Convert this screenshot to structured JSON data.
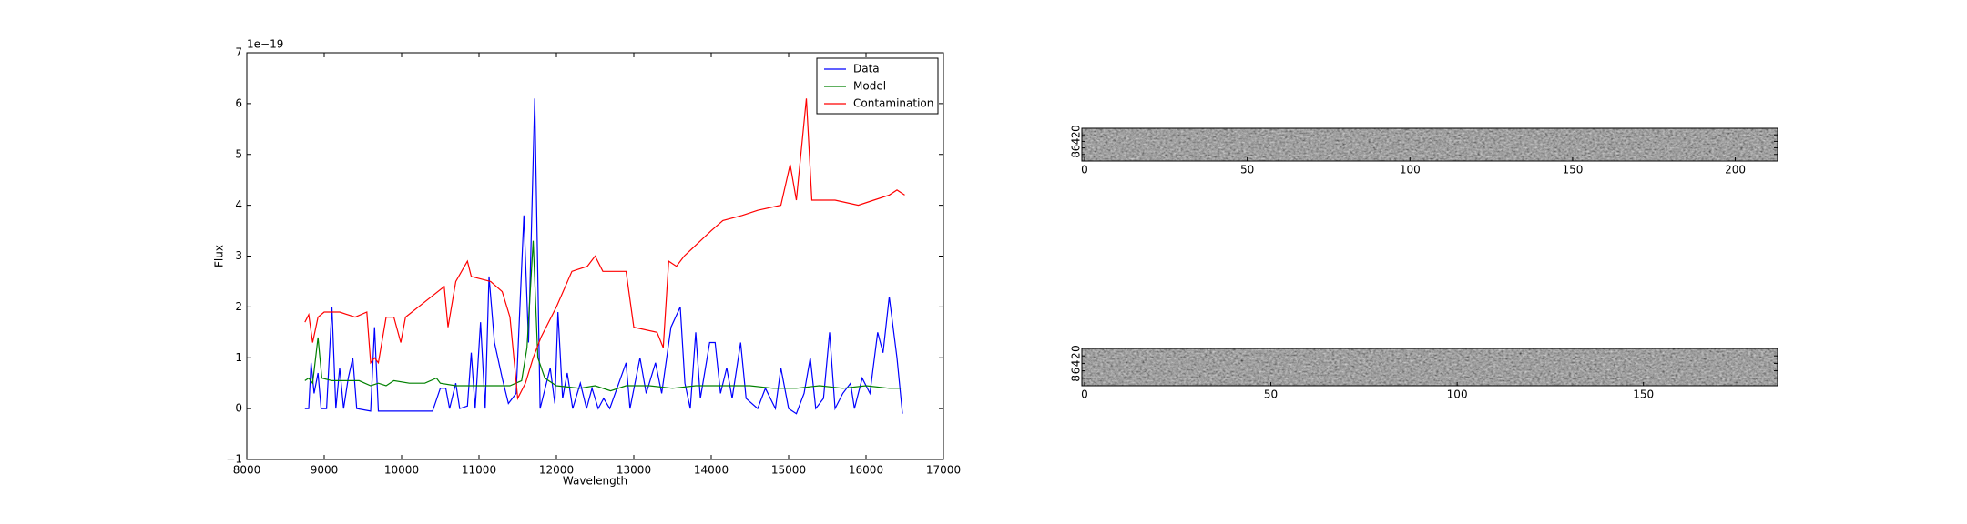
{
  "chart_data": [
    {
      "type": "line",
      "xlabel": "Wavelength",
      "ylabel": "Flux",
      "y_offset_label": "1e−19",
      "xlim": [
        8000,
        17000
      ],
      "xticks": [
        8000,
        9000,
        10000,
        11000,
        12000,
        13000,
        14000,
        15000,
        16000,
        17000
      ],
      "ylim": [
        -1,
        7
      ],
      "yticks": [
        {
          "value": -1,
          "label": "−1"
        },
        0,
        1,
        2,
        3,
        4,
        5,
        6,
        7
      ],
      "legend": "upper right",
      "series": [
        {
          "name": "Data",
          "color": "#0000ff",
          "x": [
            8750,
            8800,
            8830,
            8870,
            8920,
            8960,
            9030,
            9100,
            9150,
            9200,
            9250,
            9310,
            9370,
            9420,
            9600,
            9650,
            9700,
            10000,
            10400,
            10500,
            10570,
            10620,
            10700,
            10750,
            10850,
            10900,
            10950,
            11020,
            11080,
            11130,
            11200,
            11300,
            11380,
            11480,
            11580,
            11640,
            11720,
            11790,
            11920,
            11980,
            12020,
            12080,
            12140,
            12210,
            12310,
            12390,
            12460,
            12540,
            12610,
            12690,
            12900,
            12950,
            13080,
            13160,
            13280,
            13360,
            13480,
            13600,
            13660,
            13730,
            13800,
            13860,
            13980,
            14050,
            14120,
            14200,
            14270,
            14380,
            14450,
            14600,
            14700,
            14830,
            14900,
            15000,
            15100,
            15200,
            15280,
            15350,
            15450,
            15530,
            15600,
            15700,
            15800,
            15850,
            15950,
            16050,
            16150,
            16220,
            16300,
            16400,
            16470
          ],
          "values": [
            0,
            0,
            0.9,
            0.3,
            0.7,
            0,
            0,
            2.0,
            0,
            0.8,
            0,
            0.6,
            1.0,
            0,
            -0.05,
            1.6,
            -0.05,
            -0.05,
            -0.05,
            0.4,
            0.4,
            0,
            0.5,
            0,
            0.05,
            1.1,
            0,
            1.7,
            0,
            2.6,
            1.3,
            0.6,
            0.1,
            0.3,
            3.8,
            1.3,
            6.1,
            0,
            0.8,
            0.1,
            1.9,
            0.2,
            0.7,
            0,
            0.5,
            0,
            0.4,
            0,
            0.2,
            0,
            0.9,
            0,
            1.0,
            0.3,
            0.9,
            0.3,
            1.6,
            2.0,
            0.5,
            0,
            1.5,
            0.2,
            1.3,
            1.3,
            0.3,
            0.8,
            0.2,
            1.3,
            0.2,
            0,
            0.4,
            0,
            0.8,
            0,
            -0.1,
            0.3,
            1.0,
            0,
            0.2,
            1.5,
            0,
            0.3,
            0.5,
            0,
            0.6,
            0.3,
            1.5,
            1.1,
            2.2,
            1.0,
            -0.1
          ]
        },
        {
          "name": "Model",
          "color": "#008000",
          "x": [
            8750,
            8800,
            8850,
            8920,
            8970,
            9100,
            9300,
            9450,
            9600,
            9700,
            9800,
            9900,
            10100,
            10300,
            10450,
            10500,
            10700,
            10900,
            11200,
            11400,
            11550,
            11620,
            11700,
            11760,
            11850,
            12000,
            12300,
            12500,
            12700,
            12900,
            13200,
            13500,
            13800,
            14200,
            14500,
            14800,
            15100,
            15400,
            15700,
            16000,
            16300,
            16450
          ],
          "values": [
            0.55,
            0.6,
            0.5,
            1.4,
            0.6,
            0.55,
            0.55,
            0.55,
            0.45,
            0.5,
            0.45,
            0.55,
            0.5,
            0.5,
            0.6,
            0.5,
            0.45,
            0.45,
            0.45,
            0.45,
            0.55,
            1.2,
            3.3,
            1.0,
            0.6,
            0.45,
            0.4,
            0.45,
            0.35,
            0.45,
            0.45,
            0.4,
            0.45,
            0.45,
            0.45,
            0.4,
            0.4,
            0.45,
            0.4,
            0.45,
            0.4,
            0.4
          ]
        },
        {
          "name": "Contamination",
          "color": "#ff0000",
          "x": [
            8750,
            8800,
            8850,
            8920,
            9000,
            9200,
            9400,
            9550,
            9600,
            9650,
            9700,
            9800,
            9900,
            9990,
            10050,
            10300,
            10550,
            10600,
            10700,
            10850,
            10900,
            11150,
            11300,
            11400,
            11450,
            11500,
            11600,
            11700,
            11800,
            12000,
            12200,
            12400,
            12500,
            12600,
            12900,
            13000,
            13300,
            13380,
            13450,
            13550,
            13650,
            14000,
            14150,
            14400,
            14600,
            14900,
            15020,
            15100,
            15230,
            15300,
            15600,
            15900,
            16100,
            16300,
            16400,
            16500
          ],
          "values": [
            1.7,
            1.85,
            1.3,
            1.8,
            1.9,
            1.9,
            1.8,
            1.9,
            0.9,
            1.0,
            0.9,
            1.8,
            1.8,
            1.3,
            1.8,
            2.1,
            2.4,
            1.6,
            2.5,
            2.9,
            2.6,
            2.5,
            2.3,
            1.8,
            1.0,
            0.2,
            0.5,
            1.0,
            1.4,
            2.0,
            2.7,
            2.8,
            3.0,
            2.7,
            2.7,
            1.6,
            1.5,
            1.2,
            2.9,
            2.8,
            3.0,
            3.5,
            3.7,
            3.8,
            3.9,
            4.0,
            4.8,
            4.1,
            6.1,
            4.1,
            4.1,
            4.0,
            4.1,
            4.2,
            4.3,
            4.2
          ]
        }
      ]
    },
    {
      "type": "image",
      "xlim": [
        0,
        213
      ],
      "xticks": [
        0,
        50,
        100,
        150,
        200
      ],
      "ylim": [
        0,
        10
      ],
      "yticks": [
        0,
        2,
        4,
        6,
        8
      ]
    },
    {
      "type": "image",
      "xlim": [
        0,
        186
      ],
      "xticks": [
        0,
        50,
        100,
        150
      ],
      "ylim": [
        0,
        10
      ],
      "yticks": [
        0,
        2,
        4,
        6,
        8
      ]
    }
  ]
}
